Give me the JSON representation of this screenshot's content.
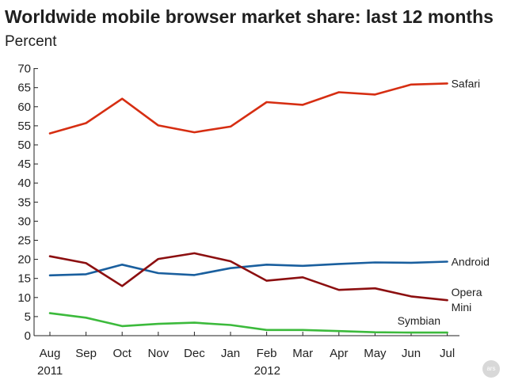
{
  "chart_data": {
    "type": "line",
    "title": "Worldwide mobile browser market share: last 12 months",
    "subtitle": "Percent",
    "x": [
      "Aug",
      "Sep",
      "Oct",
      "Nov",
      "Dec",
      "Jan",
      "Feb",
      "Mar",
      "Apr",
      "May",
      "Jun",
      "Jul"
    ],
    "x_sublabels": [
      "2011",
      "",
      "",
      "",
      "",
      "",
      "2012",
      "",
      "",
      "",
      "",
      ""
    ],
    "ylim": [
      0,
      70
    ],
    "yticks": [
      0,
      5,
      10,
      15,
      20,
      25,
      30,
      35,
      40,
      45,
      50,
      55,
      60,
      65,
      70
    ],
    "grid": false,
    "series": [
      {
        "name": "Safari",
        "color": "#d62e12",
        "values": [
          53.0,
          55.7,
          62.1,
          55.1,
          53.3,
          54.8,
          61.2,
          60.5,
          63.8,
          63.2,
          65.8,
          66.1
        ]
      },
      {
        "name": "Android",
        "color": "#1a5f9e",
        "values": [
          15.8,
          16.1,
          18.6,
          16.4,
          15.9,
          17.7,
          18.6,
          18.3,
          18.8,
          19.2,
          19.1,
          19.4
        ]
      },
      {
        "name": "Opera Mini",
        "label_lines": [
          "Opera",
          "Mini"
        ],
        "color": "#8c0f10",
        "values": [
          20.8,
          19.0,
          13.0,
          20.1,
          21.6,
          19.5,
          14.4,
          15.3,
          12.0,
          12.4,
          10.3,
          9.3
        ]
      },
      {
        "name": "Symbian",
        "color": "#3cba3c",
        "values": [
          5.9,
          4.7,
          2.5,
          3.1,
          3.4,
          2.8,
          1.5,
          1.5,
          1.2,
          0.9,
          0.8,
          0.8
        ]
      }
    ]
  },
  "watermark": {
    "text": "ars"
  }
}
